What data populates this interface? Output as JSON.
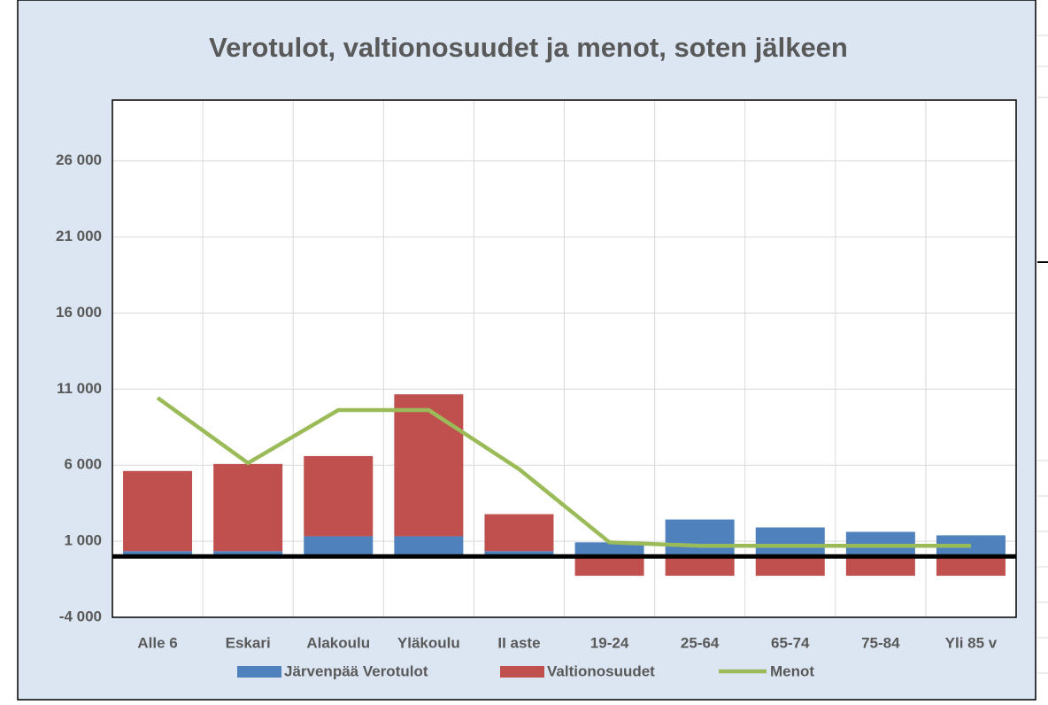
{
  "chart_data": {
    "type": "bar",
    "title": "Verotulot, valtionosuudet ja menot, soten jälkeen",
    "categories": [
      "Alle 6",
      "Eskari",
      "Alakoulu",
      "Yläkoulu",
      "II aste",
      "19-24",
      "25-64",
      "65-74",
      "75-84",
      "Yli 85 v"
    ],
    "series": [
      {
        "name": "Järvenpää Verotulot",
        "color": "#4f81bd",
        "type": "bar",
        "values": [
          350,
          350,
          1330,
          1330,
          350,
          930,
          2430,
          1910,
          1620,
          1390
        ]
      },
      {
        "name": "Valtionosuudet",
        "color": "#c0504d",
        "type": "bar",
        "values": [
          5270,
          5730,
          5270,
          9330,
          2430,
          -1270,
          -1270,
          -1270,
          -1270,
          -1270
        ]
      },
      {
        "name": "Menot",
        "color": "#9bbb59",
        "type": "line",
        "values": [
          10430,
          6140,
          9620,
          9620,
          5740,
          930,
          700,
          700,
          700,
          700
        ]
      }
    ],
    "stacked": true,
    "ylim": [
      -4000,
      30000
    ],
    "yticks": [
      {
        "value": -4000,
        "label": "-4 000"
      },
      {
        "value": 1000,
        "label": "1 000"
      },
      {
        "value": 6000,
        "label": "6 000"
      },
      {
        "value": 11000,
        "label": "11 000"
      },
      {
        "value": 16000,
        "label": "16 000"
      },
      {
        "value": 21000,
        "label": "21 000"
      },
      {
        "value": 26000,
        "label": "26 000"
      }
    ],
    "grid": true,
    "legend": "bottom"
  }
}
